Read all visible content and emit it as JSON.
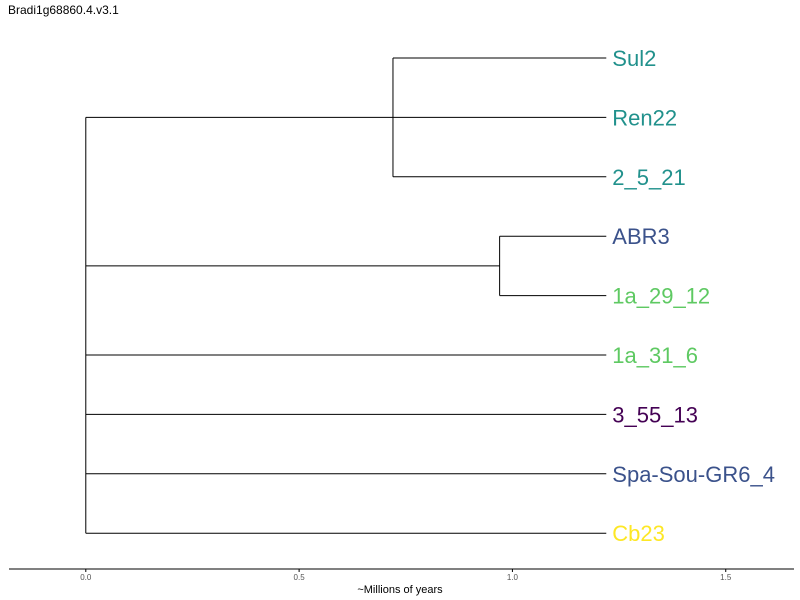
{
  "title": "Bradi1g68860.4.v3.1",
  "axis": {
    "label": "~Millions of years",
    "ticks": [
      {
        "value": 0.0,
        "label": "0.0"
      },
      {
        "value": 0.5,
        "label": "0.5"
      },
      {
        "value": 1.0,
        "label": "1.0"
      },
      {
        "value": 1.5,
        "label": "1.5"
      }
    ],
    "min": -0.18,
    "max": 1.66
  },
  "tree": {
    "leaf_age": 1.22,
    "root": {
      "age": 0.0,
      "children": [
        {
          "age": 0.72,
          "children": [
            {
              "leaf": "Sul2"
            },
            {
              "leaf": "Ren22"
            },
            {
              "leaf": "2_5_21"
            }
          ]
        },
        {
          "age": 0.97,
          "children": [
            {
              "leaf": "ABR3"
            },
            {
              "leaf": "1a_29_12"
            }
          ]
        },
        {
          "leaf": "1a_31_6"
        },
        {
          "leaf": "3_55_13"
        },
        {
          "leaf": "Spa-Sou-GR6_4"
        },
        {
          "leaf": "Cb23"
        }
      ]
    }
  },
  "leaves": [
    {
      "name": "Sul2",
      "color": "#21918c"
    },
    {
      "name": "Ren22",
      "color": "#21918c"
    },
    {
      "name": "2_5_21",
      "color": "#21918c"
    },
    {
      "name": "ABR3",
      "color": "#3b528b"
    },
    {
      "name": "1a_29_12",
      "color": "#5ec962"
    },
    {
      "name": "1a_31_6",
      "color": "#5ec962"
    },
    {
      "name": "3_55_13",
      "color": "#440154"
    },
    {
      "name": "Spa-Sou-GR6_4",
      "color": "#3b528b"
    },
    {
      "name": "Cb23",
      "color": "#fde725"
    }
  ]
}
